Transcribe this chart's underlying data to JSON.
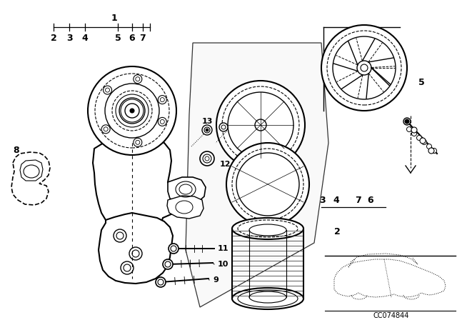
{
  "bg_color": "#ffffff",
  "line_color": "#000000",
  "diagram_code": "CC074844",
  "lw_main": 1.2,
  "lw_thin": 0.7,
  "lw_thick": 1.8
}
